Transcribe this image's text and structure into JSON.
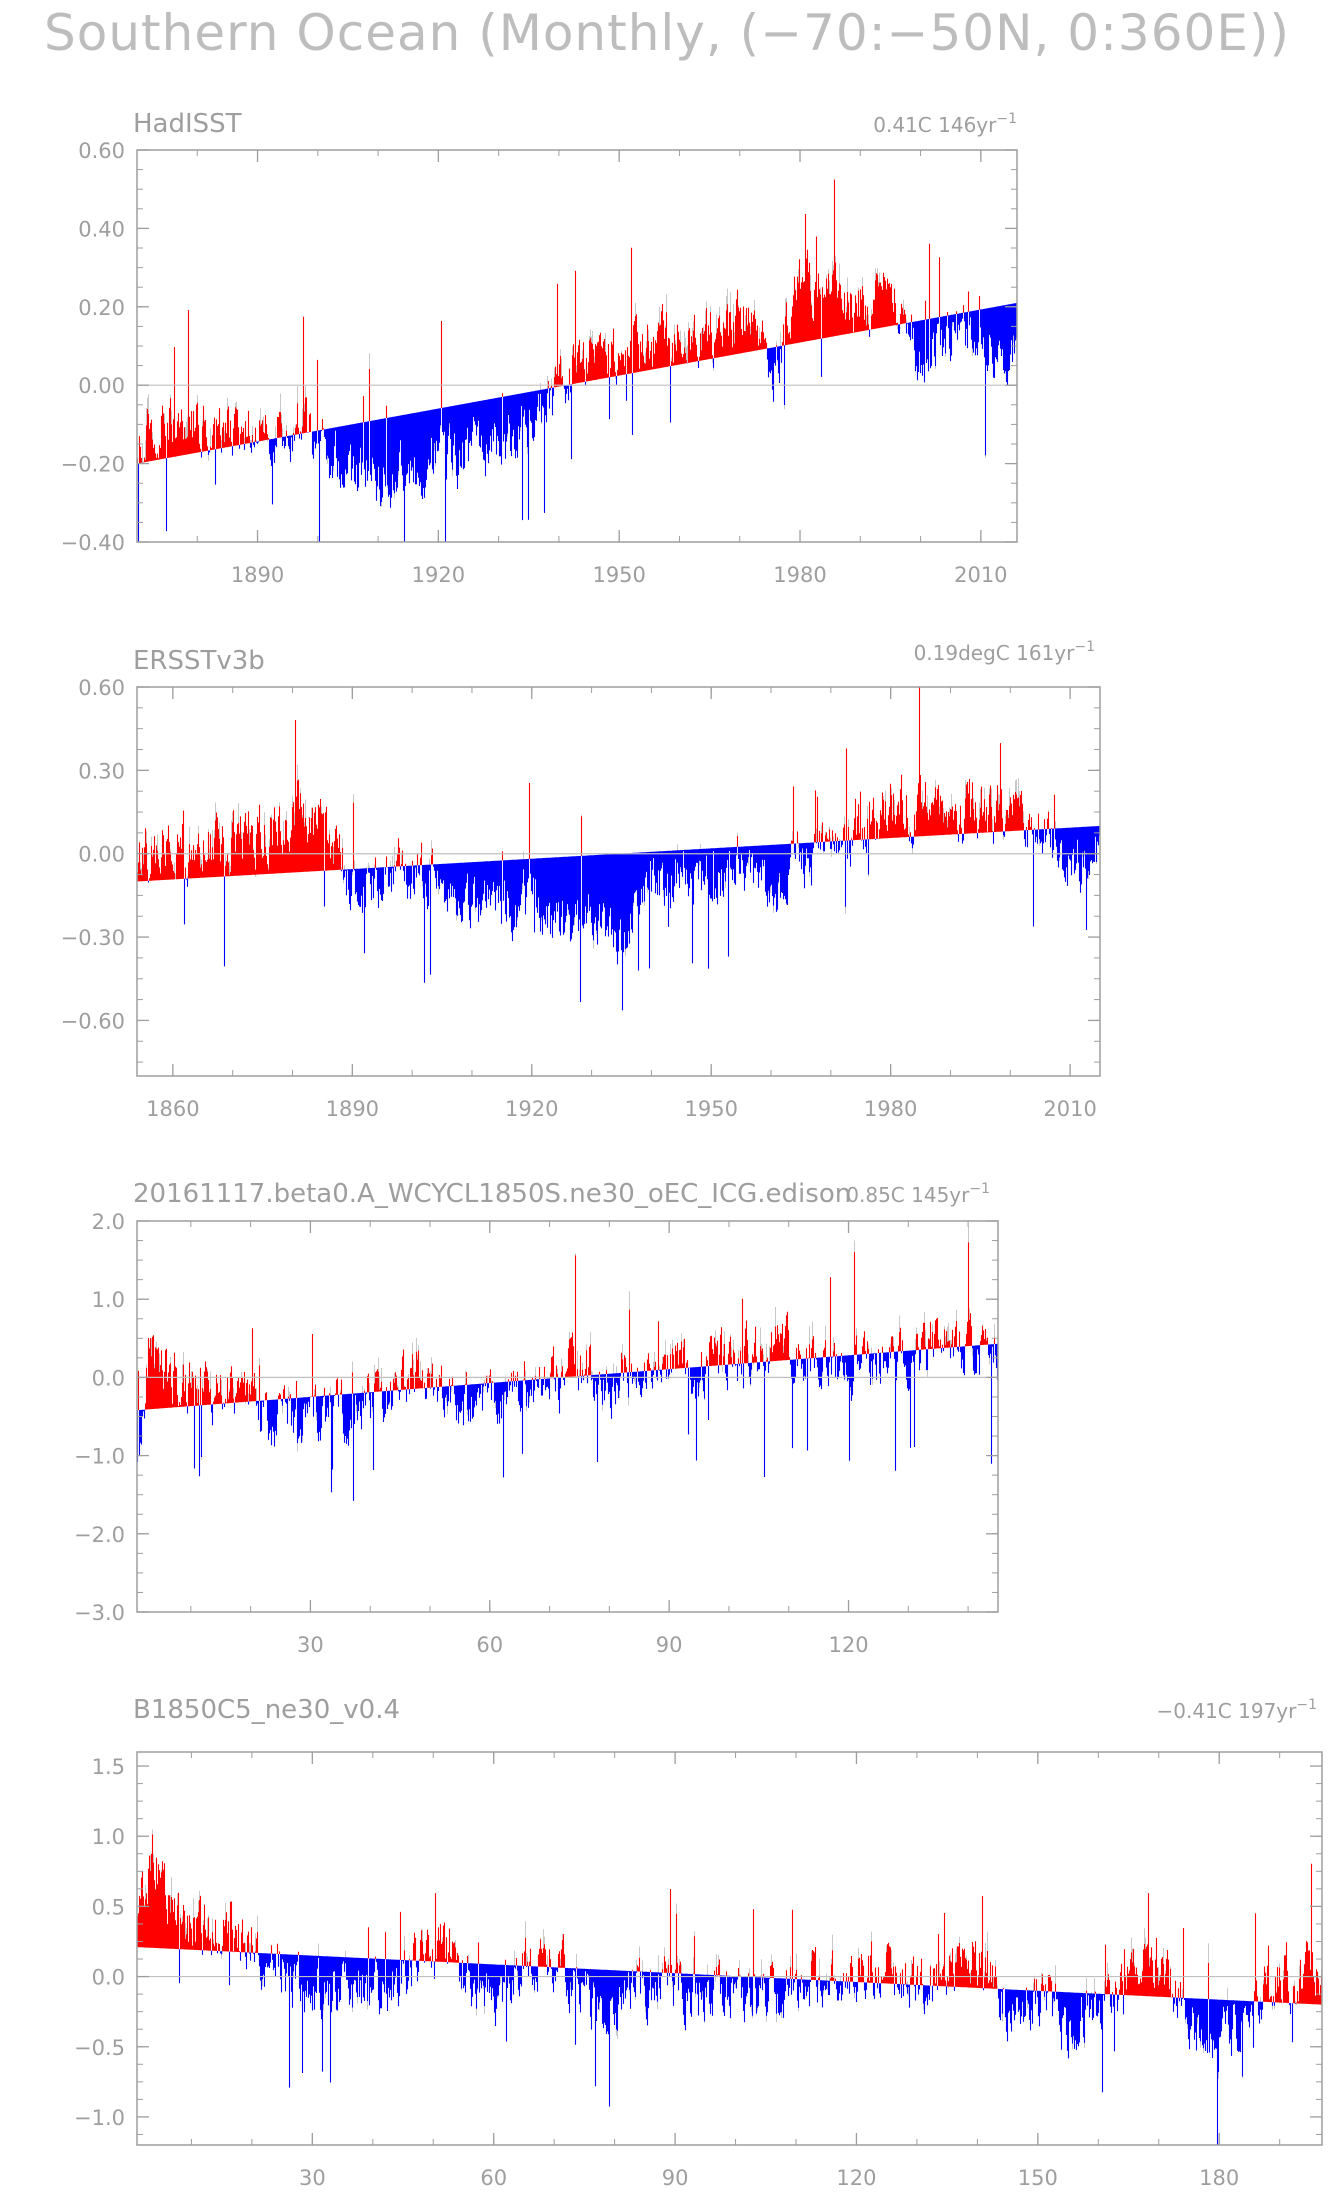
{
  "figure": {
    "title": "Southern Ocean (Monthly, (−70:−50N, 0:360E))",
    "colors": {
      "positive": "#ff0000",
      "negative": "#0000ff",
      "axis": "#9e9e9e",
      "zero_line": "#c0c0c0"
    }
  },
  "chart_data": [
    {
      "type": "bar",
      "title": "HadISST",
      "stat_text": "0.41C 146yr",
      "stat_sup": "−1",
      "x": [
        1870,
        2016
      ],
      "ylim": [
        -0.4,
        0.6
      ],
      "yticks": [
        -0.4,
        -0.2,
        0.0,
        0.2,
        0.4,
        0.6
      ],
      "ytick_labels": [
        "−0.40",
        "−0.20",
        "0.00",
        "0.20",
        "0.40",
        "0.60"
      ],
      "xticks": [
        1890,
        1920,
        1950,
        1980,
        2010
      ],
      "xtick_labels": [
        "1890",
        "1920",
        "1950",
        "1980",
        "2010"
      ],
      "trend": [
        -0.2,
        0.21
      ],
      "anomaly_keypoints": [
        [
          1870,
          -0.14
        ],
        [
          1875,
          -0.07
        ],
        [
          1880,
          -0.09
        ],
        [
          1890,
          -0.12
        ],
        [
          1897,
          -0.1
        ],
        [
          1905,
          -0.22
        ],
        [
          1912,
          -0.25
        ],
        [
          1920,
          -0.18
        ],
        [
          1930,
          -0.16
        ],
        [
          1938,
          -0.06
        ],
        [
          1945,
          0.06
        ],
        [
          1955,
          0.1
        ],
        [
          1965,
          0.12
        ],
        [
          1972,
          0.2
        ],
        [
          1975,
          0.0
        ],
        [
          1980,
          0.27
        ],
        [
          1985,
          0.24
        ],
        [
          1990,
          0.2
        ],
        [
          1995,
          0.22
        ],
        [
          2000,
          0.06
        ],
        [
          2005,
          0.14
        ],
        [
          2010,
          0.12
        ],
        [
          2016,
          0.08
        ]
      ]
    },
    {
      "type": "bar",
      "title": "ERSSTv3b",
      "stat_text": "0.19degC 161yr",
      "stat_sup": "−1",
      "x": [
        1854,
        2015
      ],
      "ylim": [
        -0.8,
        0.6
      ],
      "yticks": [
        -0.6,
        -0.3,
        0.0,
        0.3,
        0.6
      ],
      "ytick_labels": [
        "−0.60",
        "−0.30",
        "0.00",
        "0.30",
        "0.60"
      ],
      "xticks": [
        1860,
        1890,
        1920,
        1950,
        1980,
        2010
      ],
      "xtick_labels": [
        "1860",
        "1890",
        "1920",
        "1950",
        "1980",
        "2010"
      ],
      "trend": [
        -0.1,
        0.1
      ],
      "anomaly_keypoints": [
        [
          1854,
          0.0
        ],
        [
          1860,
          0.03
        ],
        [
          1870,
          0.05
        ],
        [
          1878,
          0.1
        ],
        [
          1882,
          0.17
        ],
        [
          1886,
          0.06
        ],
        [
          1890,
          -0.13
        ],
        [
          1898,
          -0.06
        ],
        [
          1905,
          -0.1
        ],
        [
          1912,
          -0.2
        ],
        [
          1920,
          -0.17
        ],
        [
          1925,
          -0.28
        ],
        [
          1930,
          -0.24
        ],
        [
          1935,
          -0.3
        ],
        [
          1940,
          -0.12
        ],
        [
          1945,
          -0.06
        ],
        [
          1950,
          -0.1
        ],
        [
          1955,
          -0.02
        ],
        [
          1960,
          -0.12
        ],
        [
          1965,
          -0.04
        ],
        [
          1970,
          0.0
        ],
        [
          1975,
          0.08
        ],
        [
          1980,
          0.18
        ],
        [
          1985,
          0.17
        ],
        [
          1990,
          0.15
        ],
        [
          1995,
          0.15
        ],
        [
          2000,
          0.13
        ],
        [
          2005,
          0.1
        ],
        [
          2008,
          -0.03
        ],
        [
          2012,
          -0.02
        ],
        [
          2015,
          0.05
        ]
      ]
    },
    {
      "type": "bar",
      "title": "20161117.beta0.A_WCYCL1850S.ne30_oEC_ICG.edison",
      "stat_text": "0.85C 145yr",
      "stat_sup": "−1",
      "x": [
        1,
        145
      ],
      "ylim": [
        -3.0,
        2.0
      ],
      "yticks": [
        -3.0,
        -2.0,
        -1.0,
        0.0,
        1.0,
        2.0
      ],
      "ytick_labels": [
        "−3.0",
        "−2.0",
        "−1.0",
        "0.0",
        "1.0",
        "2.0"
      ],
      "xticks": [
        30,
        60,
        90,
        120
      ],
      "xtick_labels": [
        "30",
        "60",
        "90",
        "120"
      ],
      "trend": [
        -0.42,
        0.43
      ],
      "anomaly_keypoints": [
        [
          1,
          -0.9
        ],
        [
          2,
          -0.3
        ],
        [
          3,
          0.4
        ],
        [
          5,
          0.15
        ],
        [
          8,
          -0.1
        ],
        [
          12,
          -0.15
        ],
        [
          20,
          -0.35
        ],
        [
          25,
          -0.5
        ],
        [
          30,
          -0.45
        ],
        [
          36,
          -0.4
        ],
        [
          42,
          -0.3
        ],
        [
          48,
          0.1
        ],
        [
          52,
          -0.25
        ],
        [
          58,
          -0.4
        ],
        [
          63,
          -0.2
        ],
        [
          68,
          -0.05
        ],
        [
          72,
          -0.05
        ],
        [
          75,
          0.15
        ],
        [
          80,
          -0.1
        ],
        [
          85,
          0.2
        ],
        [
          90,
          0.15
        ],
        [
          95,
          0.1
        ],
        [
          100,
          0.25
        ],
        [
          105,
          0.35
        ],
        [
          110,
          0.3
        ],
        [
          115,
          0.2
        ],
        [
          120,
          0.05
        ],
        [
          125,
          0.2
        ],
        [
          130,
          0.25
        ],
        [
          135,
          0.45
        ],
        [
          140,
          0.35
        ],
        [
          145,
          0.3
        ]
      ]
    },
    {
      "type": "bar",
      "title": "B1850C5_ne30_v0.4",
      "stat_text": "−0.41C 197yr",
      "stat_sup": "−1",
      "x": [
        1,
        197
      ],
      "ylim": [
        -1.2,
        1.6
      ],
      "yticks": [
        -1.0,
        -0.5,
        0.0,
        0.5,
        1.0,
        1.5
      ],
      "ytick_labels": [
        "−1.0",
        "−0.5",
        "0.0",
        "0.5",
        "1.0",
        "1.5"
      ],
      "xticks": [
        30,
        60,
        90,
        120,
        150,
        180
      ],
      "xtick_labels": [
        "30",
        "60",
        "90",
        "120",
        "150",
        "180"
      ],
      "trend": [
        0.21,
        -0.2
      ],
      "anomaly_keypoints": [
        [
          1,
          0.55
        ],
        [
          4,
          0.85
        ],
        [
          7,
          0.45
        ],
        [
          10,
          0.35
        ],
        [
          15,
          0.3
        ],
        [
          20,
          0.28
        ],
        [
          25,
          0.05
        ],
        [
          30,
          -0.1
        ],
        [
          36,
          -0.05
        ],
        [
          42,
          -0.1
        ],
        [
          48,
          0.08
        ],
        [
          53,
          0.18
        ],
        [
          58,
          -0.2
        ],
        [
          63,
          0.0
        ],
        [
          68,
          0.2
        ],
        [
          72,
          0.05
        ],
        [
          77,
          -0.2
        ],
        [
          82,
          -0.15
        ],
        [
          88,
          -0.05
        ],
        [
          95,
          -0.1
        ],
        [
          100,
          -0.1
        ],
        [
          105,
          -0.12
        ],
        [
          110,
          -0.1
        ],
        [
          115,
          -0.05
        ],
        [
          120,
          0.05
        ],
        [
          125,
          -0.02
        ],
        [
          130,
          -0.08
        ],
        [
          135,
          0.08
        ],
        [
          140,
          0.15
        ],
        [
          145,
          -0.2
        ],
        [
          150,
          -0.1
        ],
        [
          155,
          -0.35
        ],
        [
          160,
          -0.25
        ],
        [
          165,
          0.0
        ],
        [
          170,
          0.15
        ],
        [
          175,
          -0.3
        ],
        [
          180,
          -0.45
        ],
        [
          185,
          -0.2
        ],
        [
          190,
          0.0
        ],
        [
          197,
          0.0
        ]
      ]
    }
  ]
}
